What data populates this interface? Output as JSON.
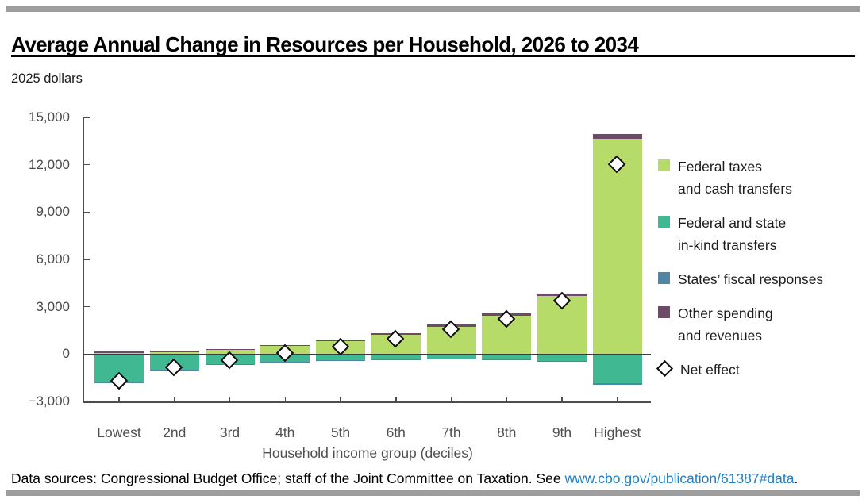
{
  "page": {
    "unit_label": "2025 dollars"
  },
  "footer": {
    "prefix": "Data sources: Congressional Budget Office; staff of the Joint Committee on Taxation. See ",
    "link": "www.cbo.gov/publication/61387#data",
    "suffix": "."
  },
  "colors": {
    "federal_taxes_cash": "#b7db69",
    "in_kind_transfers": "#40b892",
    "states_fiscal": "#4e86a3",
    "other_spending": "#6d4a68",
    "axis": "#4d4d4d",
    "link_blue": "#1f7ec6",
    "divider_gray": "#9e9e9e"
  },
  "legend": {
    "items": [
      {
        "series": 0,
        "lines": [
          "Federal taxes",
          "and cash transfers"
        ]
      },
      {
        "series": 1,
        "lines": [
          "Federal and state",
          "in-kind transfers"
        ]
      },
      {
        "series": 2,
        "lines": [
          "States’ fiscal responses"
        ]
      },
      {
        "series": 3,
        "lines": [
          "Other spending",
          "and revenues"
        ]
      },
      {
        "series": "net",
        "lines": [
          "Net effect"
        ]
      }
    ]
  },
  "chart_data": {
    "type": "bar",
    "stacked": true,
    "title": "Average Annual Change in Resources per Household, 2026 to 2034",
    "unit": "2025 dollars",
    "xlabel": "Household income group (deciles)",
    "ylabel": "2025 dollars",
    "ylim": [
      -3000,
      15000
    ],
    "grid": false,
    "legend_position": "right",
    "yticks": [
      {
        "v": 15000,
        "label": "15,000"
      },
      {
        "v": 12000,
        "label": "12,000"
      },
      {
        "v": 9000,
        "label": "9,000"
      },
      {
        "v": 6000,
        "label": "6,000"
      },
      {
        "v": 3000,
        "label": "3,000"
      },
      {
        "v": 0,
        "label": "0"
      },
      {
        "v": -3000,
        "label": "−3,000"
      }
    ],
    "categories": [
      "Lowest",
      "2nd",
      "3rd",
      "4th",
      "5th",
      "6th",
      "7th",
      "8th",
      "9th",
      "Highest"
    ],
    "series": [
      {
        "name": "Federal taxes and cash transfers",
        "color": "#b7db69",
        "values": [
          50,
          100,
          250,
          500,
          800,
          1200,
          1750,
          2450,
          3700,
          13650
        ]
      },
      {
        "name": "Federal and state in-kind transfers",
        "color": "#40b892",
        "values": [
          -1800,
          -1000,
          -650,
          -500,
          -400,
          -350,
          -300,
          -325,
          -450,
          -1850
        ]
      },
      {
        "name": "States’ fiscal responses",
        "color": "#4e86a3",
        "values": [
          -50,
          -50,
          -50,
          -25,
          -25,
          -25,
          -25,
          -25,
          -25,
          -100
        ]
      },
      {
        "name": "Other spending and revenues",
        "color": "#6d4a68",
        "values": [
          100,
          100,
          50,
          75,
          75,
          100,
          125,
          125,
          150,
          300
        ]
      }
    ],
    "net_effect": {
      "name": "Net effect",
      "values": [
        -1700,
        -850,
        -400,
        50,
        450,
        925,
        1550,
        2225,
        3375,
        12000
      ]
    }
  }
}
